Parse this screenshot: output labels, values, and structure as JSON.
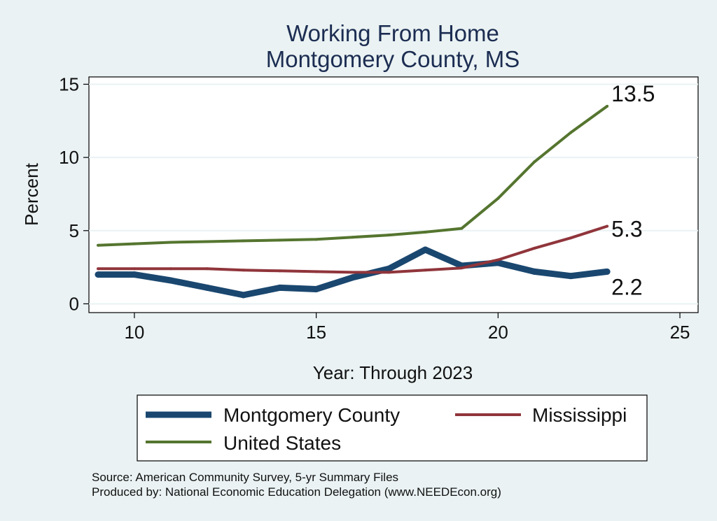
{
  "chart_data": {
    "type": "line",
    "title": [
      "Working From Home",
      "Montgomery County, MS"
    ],
    "xlabel": "Year: Through 2023",
    "ylabel": "Percent",
    "xlim": [
      8.75,
      25.5
    ],
    "ylim": [
      -0.6,
      15.5
    ],
    "xticks": [
      10,
      15,
      20,
      25
    ],
    "yticks": [
      0,
      5,
      10,
      15
    ],
    "grid": true,
    "legend_position": "bottom",
    "x": [
      9,
      10,
      11,
      12,
      13,
      14,
      15,
      16,
      17,
      18,
      19,
      20,
      21,
      22,
      23
    ],
    "series": [
      {
        "name": "Montgomery County",
        "color": "#1a476f",
        "width": 9,
        "values": [
          2.0,
          2.0,
          1.6,
          1.1,
          0.6,
          1.1,
          1.0,
          1.8,
          2.4,
          3.7,
          2.6,
          2.8,
          2.2,
          1.9,
          2.2
        ],
        "end_label": "2.2"
      },
      {
        "name": "Mississippi",
        "color": "#90353b",
        "width": 4,
        "values": [
          2.4,
          2.4,
          2.4,
          2.4,
          2.3,
          2.25,
          2.2,
          2.15,
          2.15,
          2.3,
          2.45,
          3.0,
          3.8,
          4.5,
          5.3
        ],
        "end_label": "5.3"
      },
      {
        "name": "United States",
        "color": "#55752f",
        "width": 4,
        "values": [
          4.0,
          4.1,
          4.2,
          4.25,
          4.3,
          4.35,
          4.4,
          4.55,
          4.7,
          4.9,
          5.15,
          7.2,
          9.7,
          11.7,
          13.5
        ],
        "end_label": "13.5"
      }
    ],
    "source_lines": [
      "Source: American Community Survey, 5-yr Summary Files",
      "Produced by: National Economic Education Delegation (www.NEEDEcon.org)"
    ]
  }
}
